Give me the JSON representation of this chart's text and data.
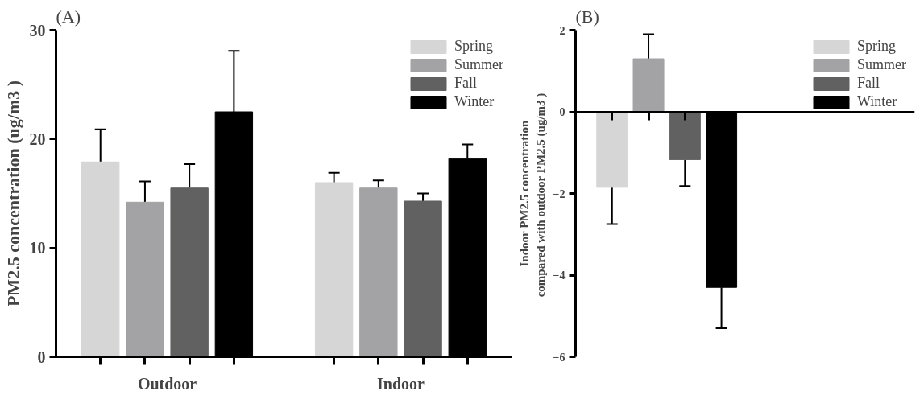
{
  "chart_data": [
    {
      "type": "bar",
      "title": "(A)",
      "ylabel": "PM2.5 concentration (ug/m3 )",
      "categories": [
        "Outdoor",
        "Indoor"
      ],
      "series": [
        {
          "name": "Spring",
          "color": "#d6d6d6",
          "values": [
            17.9,
            16.0
          ],
          "errors": [
            3.0,
            0.9
          ]
        },
        {
          "name": "Summer",
          "color": "#a3a3a6",
          "values": [
            14.2,
            15.5
          ],
          "errors": [
            1.9,
            0.7
          ]
        },
        {
          "name": "Fall",
          "color": "#616161",
          "values": [
            15.5,
            14.3
          ],
          "errors": [
            2.2,
            0.7
          ]
        },
        {
          "name": "Winter",
          "color": "#000000",
          "values": [
            22.5,
            18.2
          ],
          "errors": [
            5.6,
            1.3
          ]
        }
      ],
      "ylim": [
        0,
        30
      ],
      "yticks": [
        0,
        10,
        20,
        30
      ],
      "legend": "top right"
    },
    {
      "type": "bar",
      "title": "(B)",
      "ylabel": "Indoor PM2.5 concentration\ncompared with outdoor PM2.5  (ug/m3 )",
      "categories": [
        null
      ],
      "series": [
        {
          "name": "Spring",
          "color": "#d6d6d6",
          "values": [
            -1.85
          ],
          "errors": [
            0.9
          ]
        },
        {
          "name": "Summer",
          "color": "#a3a3a6",
          "values": [
            1.3
          ],
          "errors": [
            0.6
          ]
        },
        {
          "name": "Fall",
          "color": "#616161",
          "values": [
            -1.17
          ],
          "errors": [
            0.65
          ]
        },
        {
          "name": "Winter",
          "color": "#000000",
          "values": [
            -4.3
          ],
          "errors": [
            1.0
          ]
        }
      ],
      "ylim": [
        -6,
        2
      ],
      "yticks": [
        -6,
        -4,
        -2,
        0,
        2
      ],
      "legend": "top right",
      "tick_labels": "y"
    }
  ]
}
